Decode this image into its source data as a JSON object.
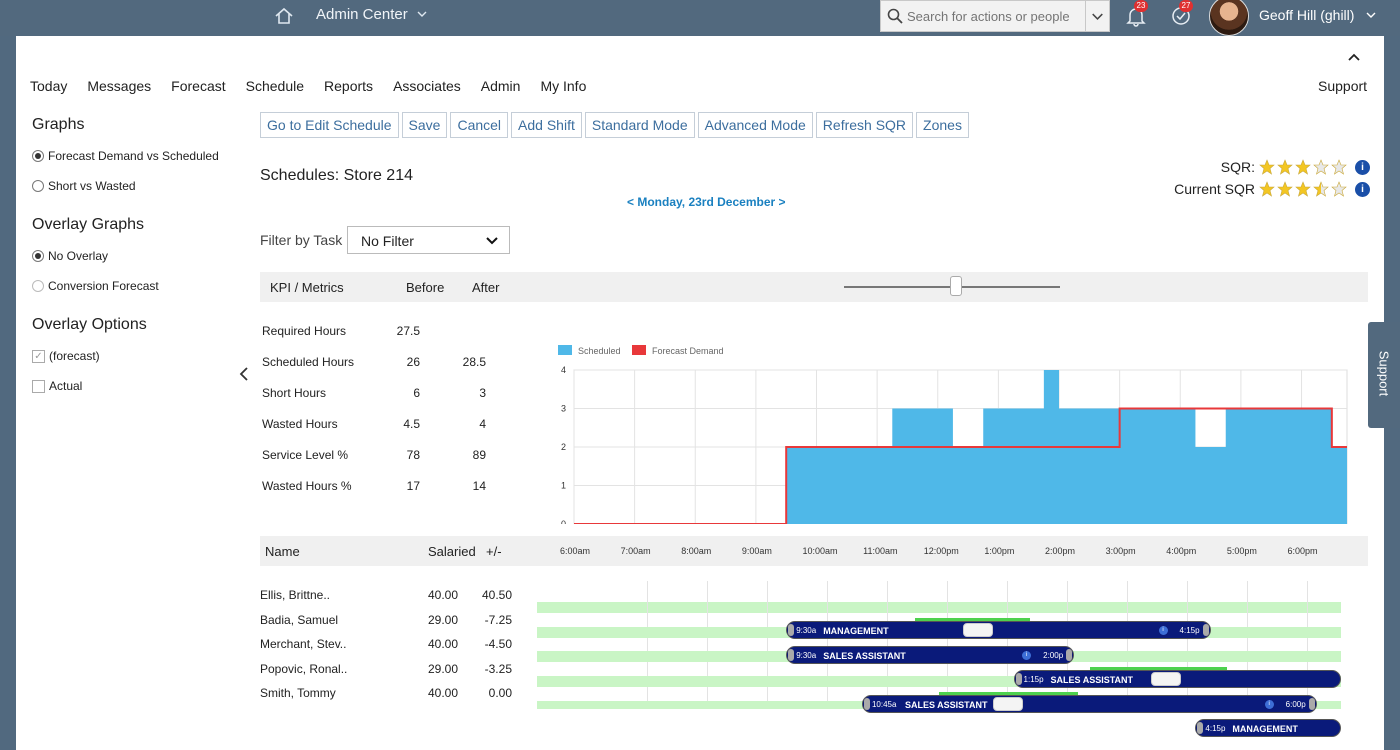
{
  "shell": {
    "app_title": "Admin Center",
    "search_placeholder": "Search for actions or people",
    "notifications_count": "23",
    "tasks_count": "27",
    "user_name": "Geoff Hill (ghill)"
  },
  "nav": {
    "items": [
      "Today",
      "Messages",
      "Forecast",
      "Schedule",
      "Reports",
      "Associates",
      "Admin",
      "My Info"
    ],
    "support": "Support"
  },
  "sidebar": {
    "graphs_title": "Graphs",
    "graphs_options": [
      "Forecast Demand vs Scheduled",
      "Short vs Wasted"
    ],
    "graphs_selected": "Forecast Demand vs Scheduled",
    "overlay_graphs_title": "Overlay Graphs",
    "overlay_graphs_options": [
      "No Overlay",
      "Conversion Forecast"
    ],
    "overlay_graphs_selected": "No Overlay",
    "overlay_options_title": "Overlay Options",
    "overlay_options": [
      {
        "label": "(forecast)",
        "checked": true
      },
      {
        "label": "Actual",
        "checked": false
      }
    ]
  },
  "toolbar": {
    "buttons": [
      "Go to Edit Schedule",
      "Save",
      "Cancel",
      "Add Shift",
      "Standard Mode",
      "Advanced Mode",
      "Refresh SQR",
      "Zones"
    ]
  },
  "page": {
    "title": "Schedules: Store 214",
    "date_nav": "< Monday, 23rd December >",
    "sqr_label": "SQR:",
    "sqr_stars": 3,
    "current_sqr_label": "Current SQR",
    "current_sqr_stars": 3.5,
    "filter_label": "Filter by Task",
    "filter_value": "No Filter"
  },
  "kpi": {
    "headers": {
      "metric": "KPI / Metrics",
      "before": "Before",
      "after": "After"
    },
    "rows": [
      {
        "name": "Required Hours",
        "before": "27.5",
        "after": ""
      },
      {
        "name": "Scheduled Hours",
        "before": "26",
        "after": "28.5"
      },
      {
        "name": "Short Hours",
        "before": "6",
        "after": "3"
      },
      {
        "name": "Wasted Hours",
        "before": "4.5",
        "after": "4"
      },
      {
        "name": "Service Level %",
        "before": "78",
        "after": "89"
      },
      {
        "name": "Wasted Hours %",
        "before": "17",
        "after": "14"
      }
    ],
    "zoom_level": 0.53
  },
  "chart_data": {
    "type": "area",
    "legend": [
      "Scheduled",
      "Forecast Demand"
    ],
    "legend_position": "top-left",
    "y_ticks": [
      0,
      1,
      2,
      3,
      4
    ],
    "ylim": [
      0,
      4
    ],
    "x_ticks": [
      "6:00am",
      "7:00am",
      "8:00am",
      "9:00am",
      "10:00am",
      "11:00am",
      "12:00pm",
      "1:00pm",
      "2:00pm",
      "3:00pm",
      "4:00pm",
      "5:00pm",
      "6:00pm"
    ],
    "xlim_hours": [
      6,
      18.75
    ],
    "grid": true,
    "series": [
      {
        "name": "Scheduled",
        "color": "#4fb8e8",
        "steps": [
          [
            6.0,
            0
          ],
          [
            9.5,
            2
          ],
          [
            11.25,
            3
          ],
          [
            12.25,
            2
          ],
          [
            12.75,
            3
          ],
          [
            13.75,
            4
          ],
          [
            14.0,
            3
          ],
          [
            15.0,
            3
          ],
          [
            16.25,
            2
          ],
          [
            16.75,
            3
          ],
          [
            18.5,
            2
          ],
          [
            18.75,
            2
          ]
        ]
      },
      {
        "name": "Forecast Demand",
        "color": "#e8383a",
        "steps": [
          [
            6.0,
            0
          ],
          [
            9.5,
            2
          ],
          [
            15.0,
            3
          ],
          [
            18.5,
            2
          ],
          [
            18.75,
            2
          ]
        ]
      }
    ]
  },
  "associates": {
    "headers": {
      "name": "Name",
      "salaried": "Salaried",
      "diff": "+/-"
    },
    "rows": [
      {
        "name": "Ellis, Brittne..",
        "salaried": "40.00",
        "diff": "40.50",
        "start": "9:30a",
        "end": "4:15p",
        "role": "MANAGEMENT"
      },
      {
        "name": "Badia, Samuel",
        "salaried": "29.00",
        "diff": "-7.25",
        "start": "9:30a",
        "end": "2:00p",
        "role": "SALES ASSISTANT"
      },
      {
        "name": "Merchant, Stev..",
        "salaried": "40.00",
        "diff": "-4.50",
        "start": "1:15p",
        "end": "",
        "role": "SALES ASSISTANT"
      },
      {
        "name": "Popovic, Ronal..",
        "salaried": "29.00",
        "diff": "-3.25",
        "start": "10:45a",
        "end": "6:00p",
        "role": "SALES ASSISTANT"
      },
      {
        "name": "Smith, Tommy",
        "salaried": "40.00",
        "diff": "0.00",
        "start": "4:15p",
        "end": "",
        "role": "MANAGEMENT"
      }
    ]
  },
  "support_tab": "Support",
  "colors": {
    "shell": "#52697e",
    "link": "#3c6e9e",
    "scheduled": "#4fb8e8",
    "forecast": "#e8383a",
    "shift": "#0a1a7a",
    "lane": "#c9f5c5"
  }
}
